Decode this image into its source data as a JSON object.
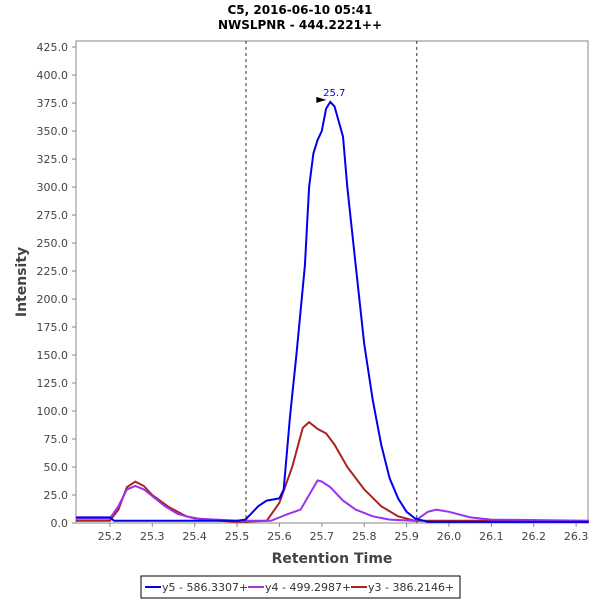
{
  "chart_data": {
    "type": "line",
    "title": "C5, 2016-06-10 05:41",
    "subtitle": "NWSLPNR - 444.2221++",
    "xlabel": "Retention Time",
    "ylabel": "Intensity",
    "xlim": [
      25.12,
      26.328
    ],
    "ylim": [
      0,
      430.4
    ],
    "xticks": [
      "25.2",
      "25.3",
      "25.4",
      "25.5",
      "25.6",
      "25.7",
      "25.8",
      "25.9",
      "26.0",
      "26.1",
      "26.2",
      "26.3"
    ],
    "yticks": [
      "0.0",
      "25.0",
      "50.0",
      "75.0",
      "100.0",
      "125.0",
      "150.0",
      "175.0",
      "200.0",
      "225.0",
      "250.0",
      "275.0",
      "300.0",
      "325.0",
      "350.0",
      "375.0",
      "400.0",
      "425.0"
    ],
    "vlines": [
      25.521,
      25.924
    ],
    "peak_annotation": {
      "label": "25.7",
      "x": 25.72,
      "y": 376
    },
    "legend_position": "bottom",
    "series": [
      {
        "name": "y5 - 586.3307+",
        "color": "#0000ee",
        "x": [
          25.12,
          25.2,
          25.21,
          25.5,
          25.52,
          25.55,
          25.57,
          25.6,
          25.61,
          25.625,
          25.64,
          25.66,
          25.67,
          25.68,
          25.69,
          25.7,
          25.71,
          25.72,
          25.73,
          25.75,
          25.76,
          25.78,
          25.8,
          25.82,
          25.84,
          25.86,
          25.88,
          25.9,
          25.92,
          25.95,
          26.33
        ],
        "y": [
          5,
          5,
          2,
          2,
          3,
          15,
          20,
          22,
          30,
          95,
          150,
          230,
          300,
          330,
          342,
          350,
          370,
          376,
          372,
          345,
          300,
          230,
          160,
          110,
          70,
          40,
          22,
          10,
          4,
          1,
          1
        ]
      },
      {
        "name": "y4 - 499.2987+",
        "color": "#9933ee",
        "x": [
          25.12,
          25.2,
          25.22,
          25.24,
          25.26,
          25.28,
          25.3,
          25.33,
          25.36,
          25.4,
          25.5,
          25.58,
          25.62,
          25.65,
          25.67,
          25.69,
          25.7,
          25.72,
          25.75,
          25.78,
          25.82,
          25.86,
          25.92,
          25.95,
          25.97,
          26.0,
          26.05,
          26.1,
          26.33
        ],
        "y": [
          4,
          4,
          15,
          30,
          33,
          30,
          24,
          15,
          8,
          4,
          2,
          2,
          8,
          12,
          25,
          38,
          37,
          32,
          20,
          12,
          6,
          3,
          2,
          10,
          12,
          10,
          5,
          3,
          2
        ]
      },
      {
        "name": "y3 - 386.2146+",
        "color": "#aa2222",
        "x": [
          25.12,
          25.2,
          25.22,
          25.24,
          25.26,
          25.28,
          25.3,
          25.34,
          25.38,
          25.42,
          25.5,
          25.57,
          25.6,
          25.63,
          25.655,
          25.67,
          25.69,
          25.71,
          25.73,
          25.76,
          25.8,
          25.84,
          25.88,
          25.92,
          26.0,
          26.1,
          26.33
        ],
        "y": [
          2,
          2,
          12,
          32,
          37,
          33,
          25,
          14,
          6,
          3,
          1,
          2,
          18,
          50,
          85,
          90,
          84,
          80,
          70,
          50,
          30,
          15,
          6,
          2,
          2,
          2,
          1
        ]
      }
    ]
  }
}
